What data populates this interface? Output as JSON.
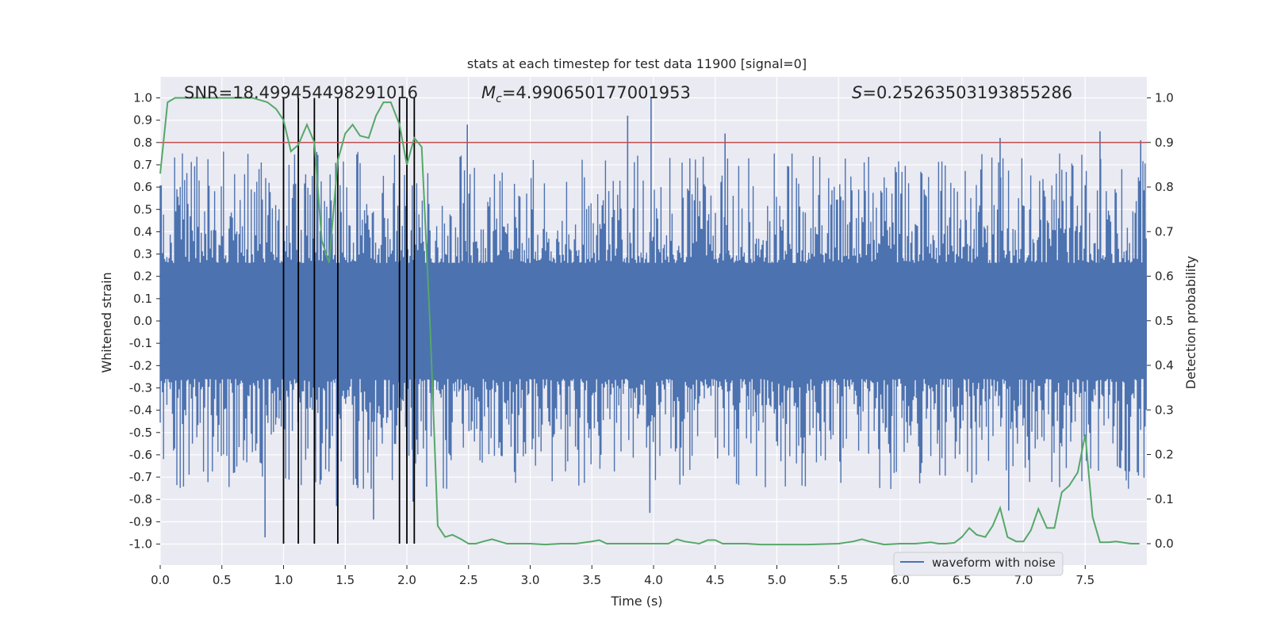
{
  "chart_data": {
    "type": "line",
    "title": "stats at each timestep for test data 11900 [signal=0]",
    "xlabel": "Time (s)",
    "ylabel_left": "Whitened strain",
    "ylabel_right": "Detection probability",
    "xlim": [
      0.0,
      8.0
    ],
    "ylim_left": [
      -1.08,
      1.1
    ],
    "ylim_right": [
      -0.05,
      1.05
    ],
    "x_ticks": [
      "0.0",
      "0.5",
      "1.0",
      "1.5",
      "2.0",
      "2.5",
      "3.0",
      "3.5",
      "4.0",
      "4.5",
      "5.0",
      "5.5",
      "6.0",
      "6.5",
      "7.0",
      "7.5"
    ],
    "y_ticks_left": [
      "1.0",
      "0.9",
      "0.8",
      "0.7",
      "0.6",
      "0.5",
      "0.4",
      "0.3",
      "0.2",
      "0.1",
      "0.0",
      "-0.1",
      "-0.2",
      "-0.3",
      "-0.4",
      "-0.5",
      "-0.6",
      "-0.7",
      "-0.8",
      "-0.9",
      "-1.0"
    ],
    "y_ticks_right": [
      "1.0",
      "0.9",
      "0.8",
      "0.7",
      "0.6",
      "0.5",
      "0.4",
      "0.3",
      "0.2",
      "0.1",
      "0.0"
    ],
    "grid": true,
    "legend_position": "lower-right",
    "annotations": {
      "snr": "SNR=18.499454498291016",
      "mc_prefix": "M",
      "mc_sub": "c",
      "mc_value": "=4.990650177001953",
      "s_prefix": "S",
      "s_value": "=0.25263503193855286"
    },
    "colors": {
      "waveform": "#4c72b0",
      "probability": "#55a868",
      "threshold": "#c44e52",
      "vlines": "#000000",
      "background": "#eaeaf2",
      "grid": "#ffffff"
    },
    "series": [
      {
        "name": "waveform with noise",
        "axis": "left",
        "style": "dense noise band",
        "band_core": [
          -0.18,
          0.2
        ],
        "typical_envelope": [
          -0.6,
          0.6
        ],
        "notable_spikes": [
          {
            "x": 0.85,
            "y": -0.97
          },
          {
            "x": 1.43,
            "y": -0.83
          },
          {
            "x": 1.73,
            "y": -0.89
          },
          {
            "x": 2.05,
            "y": -0.81
          },
          {
            "x": 2.49,
            "y": 0.88
          },
          {
            "x": 3.79,
            "y": 0.92
          },
          {
            "x": 3.97,
            "y": -0.86
          },
          {
            "x": 3.98,
            "y": 1.0
          },
          {
            "x": 4.58,
            "y": 0.84
          },
          {
            "x": 6.81,
            "y": 0.82
          },
          {
            "x": 6.88,
            "y": -0.85
          },
          {
            "x": 7.62,
            "y": 0.85
          },
          {
            "x": 7.95,
            "y": 0.81
          }
        ]
      },
      {
        "name": "",
        "axis": "right",
        "x": [
          0.0,
          0.06,
          0.12,
          0.19,
          0.25,
          0.31,
          0.37,
          0.44,
          0.5,
          0.56,
          0.62,
          0.69,
          0.75,
          0.81,
          0.87,
          0.94,
          1.0,
          1.06,
          1.12,
          1.19,
          1.25,
          1.31,
          1.37,
          1.44,
          1.5,
          1.56,
          1.62,
          1.69,
          1.75,
          1.81,
          1.87,
          1.94,
          2.0,
          2.06,
          2.12,
          2.19,
          2.25,
          2.31,
          2.37,
          2.44,
          2.5,
          2.56,
          2.62,
          2.69,
          2.75,
          2.81,
          2.87,
          2.94,
          3.0,
          3.12,
          3.25,
          3.37,
          3.5,
          3.56,
          3.62,
          3.75,
          3.87,
          4.0,
          4.12,
          4.19,
          4.25,
          4.37,
          4.44,
          4.5,
          4.56,
          4.62,
          4.75,
          4.87,
          5.0,
          5.25,
          5.5,
          5.62,
          5.69,
          5.75,
          5.87,
          6.0,
          6.12,
          6.25,
          6.31,
          6.37,
          6.44,
          6.5,
          6.56,
          6.62,
          6.69,
          6.75,
          6.81,
          6.87,
          6.94,
          7.0,
          7.06,
          7.12,
          7.19,
          7.25,
          7.31,
          7.37,
          7.44,
          7.5,
          7.56,
          7.62,
          7.69,
          7.75,
          7.87,
          7.94
        ],
        "values": [
          0.83,
          0.99,
          1.0,
          1.0,
          1.0,
          1.0,
          1.0,
          1.0,
          1.0,
          1.0,
          1.0,
          1.0,
          1.0,
          0.995,
          0.99,
          0.975,
          0.95,
          0.88,
          0.895,
          0.94,
          0.9,
          0.68,
          0.63,
          0.86,
          0.92,
          0.94,
          0.915,
          0.91,
          0.96,
          0.99,
          0.99,
          0.94,
          0.85,
          0.91,
          0.89,
          0.48,
          0.04,
          0.015,
          0.02,
          0.01,
          0.0,
          0.0,
          0.005,
          0.01,
          0.005,
          0.0,
          0.0,
          0.0,
          0.0,
          -0.002,
          0.0,
          0.0,
          0.005,
          0.008,
          0.0,
          0.0,
          0.0,
          0.0,
          0.0,
          0.01,
          0.005,
          0.0,
          0.008,
          0.008,
          0.0,
          0.0,
          0.0,
          -0.002,
          -0.002,
          -0.002,
          0.0,
          0.005,
          0.01,
          0.005,
          -0.002,
          0.0,
          0.0,
          0.003,
          0.0,
          0.0,
          0.002,
          0.015,
          0.035,
          0.02,
          0.015,
          0.04,
          0.08,
          0.015,
          0.005,
          0.005,
          0.03,
          0.078,
          0.035,
          0.035,
          0.115,
          0.13,
          0.16,
          0.245,
          0.06,
          0.003,
          0.003,
          0.005,
          0.0,
          0.0
        ]
      }
    ],
    "threshold_right": 0.9,
    "vertical_lines_x": [
      1.0,
      1.12,
      1.25,
      1.44,
      1.94,
      2.0,
      2.06
    ]
  }
}
